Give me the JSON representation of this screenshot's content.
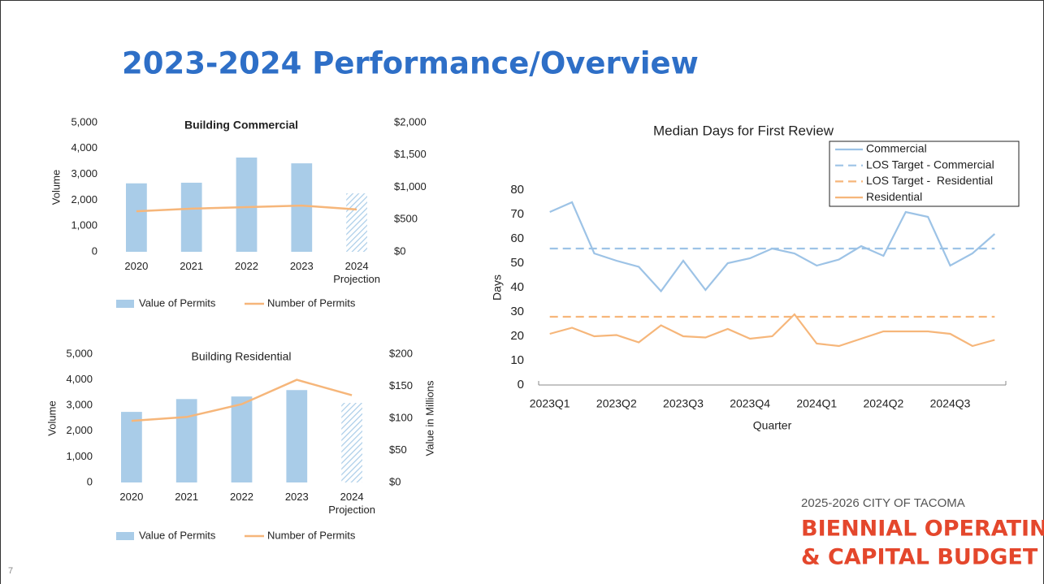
{
  "slide": {
    "title": "2023-2024 Performance/Overview",
    "page_number": "7",
    "footer": {
      "line1": "2025-2026 CITY OF TACOMA",
      "line2": "BIENNIAL OPERATING",
      "line3": "& CAPITAL BUDGET"
    }
  },
  "chart_data": [
    {
      "type": "bar",
      "title": "Building Commercial",
      "title_bold": true,
      "y_label": "Volume",
      "categories": [
        "2020",
        "2021",
        "2022",
        "2023",
        "2024\nProjection"
      ],
      "series": [
        {
          "name": "Value of Permits",
          "type": "bar",
          "axis": "y2",
          "color": "#a9cce8",
          "values": [
            1060,
            1070,
            1460,
            1370,
            905
          ],
          "hatch": [
            false,
            false,
            false,
            false,
            true
          ]
        },
        {
          "name": "Number of Permits",
          "type": "line",
          "color": "#f6b67a",
          "values": [
            1570,
            1670,
            1730,
            1790,
            1640
          ]
        }
      ],
      "ylim": [
        0,
        5000
      ],
      "yticks": [
        0,
        {
          "value": 1000,
          "label": "1,000"
        },
        {
          "value": 2000,
          "label": "2,000"
        },
        {
          "value": 3000,
          "label": "3,000"
        },
        {
          "value": 4000,
          "label": "4,000"
        },
        {
          "value": 5000,
          "label": "5,000"
        }
      ],
      "y2lim": [
        0,
        2000
      ],
      "y2ticks": [
        {
          "value": 0,
          "label": "$0"
        },
        {
          "value": 500,
          "label": "$500"
        },
        {
          "value": 1000,
          "label": "$1,000"
        },
        {
          "value": 1500,
          "label": "$1,500"
        },
        {
          "value": 2000,
          "label": "$2,000"
        }
      ],
      "legend": "bottom"
    },
    {
      "type": "bar",
      "title": "Building Residential",
      "title_bold": false,
      "y_label": "Volume",
      "y2_label": "Value in Millions",
      "categories": [
        "2020",
        "2021",
        "2022",
        "2023",
        "2024\nProjection"
      ],
      "series": [
        {
          "name": "Value of Permits",
          "type": "bar",
          "axis": "y2",
          "color": "#a9cce8",
          "values": [
            110,
            130,
            134,
            144,
            124
          ],
          "hatch": [
            false,
            false,
            false,
            false,
            true
          ]
        },
        {
          "name": "Number of Permits",
          "type": "line",
          "color": "#f6b67a",
          "values": [
            2400,
            2550,
            3050,
            4000,
            3400
          ]
        }
      ],
      "ylim": [
        0,
        5000
      ],
      "yticks": [
        0,
        {
          "value": 1000,
          "label": "1,000"
        },
        {
          "value": 2000,
          "label": "2,000"
        },
        {
          "value": 3000,
          "label": "3,000"
        },
        {
          "value": 4000,
          "label": "4,000"
        },
        {
          "value": 5000,
          "label": "5,000"
        }
      ],
      "y2lim": [
        0,
        200
      ],
      "y2ticks": [
        {
          "value": 0,
          "label": "$0"
        },
        {
          "value": 50,
          "label": "$50"
        },
        {
          "value": 100,
          "label": "$100"
        },
        {
          "value": 150,
          "label": "$150"
        },
        {
          "value": 200,
          "label": "$200"
        }
      ],
      "legend": "bottom"
    },
    {
      "type": "line",
      "title": "Median Days for First Review",
      "x_label": "Quarter",
      "y_label": "Days",
      "categories": [
        "2023Q1",
        null,
        null,
        "2023Q2",
        null,
        null,
        "2023Q3",
        null,
        null,
        "2023Q4",
        null,
        null,
        "2024Q1",
        null,
        null,
        "2024Q2",
        null,
        null,
        "2024Q3",
        null,
        null
      ],
      "series": [
        {
          "name": "Commercial",
          "color": "#9dc3e6",
          "dashed": false,
          "values": [
            71,
            75,
            54,
            51,
            48.5,
            38.5,
            51,
            39,
            50,
            52,
            56,
            54,
            49,
            51.5,
            57,
            53,
            71,
            69,
            49,
            54,
            62
          ]
        },
        {
          "name": "LOS Target - Commercial",
          "color": "#9dc3e6",
          "dashed": true,
          "values": [
            56,
            56,
            56,
            56,
            56,
            56,
            56,
            56,
            56,
            56,
            56,
            56,
            56,
            56,
            56,
            56,
            56,
            56,
            56,
            56,
            56
          ]
        },
        {
          "name": "LOS Target -  Residential",
          "color": "#f6b67a",
          "dashed": true,
          "values": [
            28,
            28,
            28,
            28,
            28,
            28,
            28,
            28,
            28,
            28,
            28,
            28,
            28,
            28,
            28,
            28,
            28,
            28,
            28,
            28,
            28
          ]
        },
        {
          "name": "Residential",
          "color": "#f6b67a",
          "dashed": false,
          "values": [
            21,
            23.5,
            20,
            20.5,
            17.5,
            24.5,
            20,
            19.5,
            23,
            19,
            20,
            29,
            17,
            16,
            19,
            22,
            22,
            22,
            21,
            16,
            18.5
          ]
        }
      ],
      "ylim": [
        0,
        80
      ],
      "yticks": [
        0,
        10,
        20,
        30,
        40,
        50,
        60,
        70,
        80
      ],
      "legend": "upper right"
    }
  ]
}
